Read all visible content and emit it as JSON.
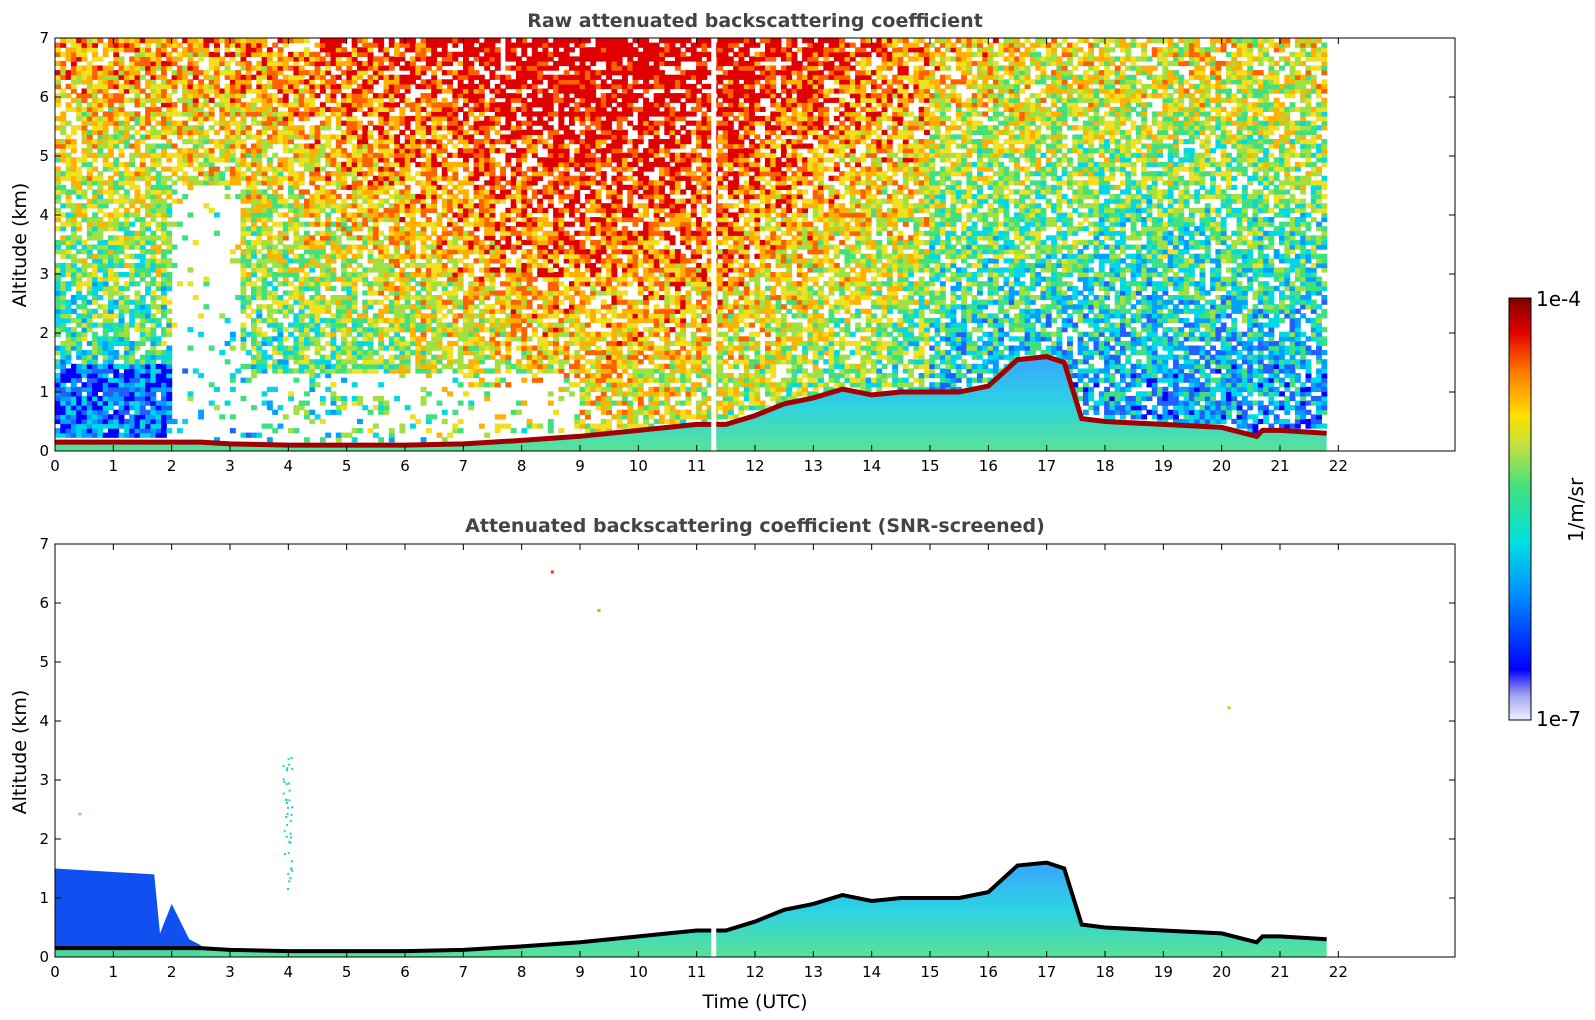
{
  "chart_data": [
    {
      "type": "heatmap",
      "title": "Raw attenuated backscattering coefficient",
      "xlabel": "",
      "ylabel": "Altitude (km)",
      "xlim": [
        0,
        24
      ],
      "ylim": [
        0,
        7
      ],
      "xticks": [
        "0",
        "1",
        "2",
        "3",
        "4",
        "5",
        "6",
        "7",
        "8",
        "9",
        "10",
        "11",
        "12",
        "13",
        "14",
        "15",
        "16",
        "17",
        "18",
        "19",
        "20",
        "21",
        "22"
      ],
      "yticks": [
        "0",
        "1",
        "2",
        "3",
        "4",
        "5",
        "6",
        "7"
      ],
      "data_extent_hours": [
        0,
        21.8
      ],
      "boundary_layer_top_km": {
        "time_utc": [
          0,
          2,
          2.5,
          3,
          4,
          5,
          6,
          7,
          8,
          9,
          10,
          11,
          11.5,
          12,
          12.5,
          13,
          13.5,
          14,
          14.5,
          15,
          15.5,
          16,
          16.5,
          17,
          17.3,
          17.6,
          18,
          19,
          20,
          20.6,
          20.7,
          21,
          21.8
        ],
        "altitude_km": [
          0.15,
          0.15,
          0.15,
          0.12,
          0.1,
          0.1,
          0.1,
          0.12,
          0.18,
          0.25,
          0.35,
          0.45,
          0.45,
          0.6,
          0.8,
          0.9,
          1.05,
          0.95,
          1.0,
          1.0,
          1.0,
          1.1,
          1.55,
          1.6,
          1.5,
          0.55,
          0.5,
          0.45,
          0.4,
          0.25,
          0.35,
          0.35,
          0.3
        ]
      },
      "grid": false,
      "legend": "none"
    },
    {
      "type": "heatmap",
      "title": "Attenuated backscattering coefficient (SNR-screened)",
      "xlabel": "Time (UTC)",
      "ylabel": "Altitude (km)",
      "xlim": [
        0,
        24
      ],
      "ylim": [
        0,
        7
      ],
      "xticks": [
        "0",
        "1",
        "2",
        "3",
        "4",
        "5",
        "6",
        "7",
        "8",
        "9",
        "10",
        "11",
        "12",
        "13",
        "14",
        "15",
        "16",
        "17",
        "18",
        "19",
        "20",
        "21",
        "22"
      ],
      "yticks": [
        "0",
        "1",
        "2",
        "3",
        "4",
        "5",
        "6",
        "7"
      ],
      "data_extent_hours": [
        0,
        21.8
      ],
      "residual_layer_top_km": {
        "time_utc": [
          0,
          1.7,
          1.8,
          2.0,
          2.3,
          2.5
        ],
        "altitude_km": [
          1.5,
          1.4,
          0.4,
          0.9,
          0.3,
          0.2
        ]
      },
      "grid": false,
      "legend": "none"
    }
  ],
  "colorbar": {
    "label": "1/m/sr",
    "max_label": "1e-4",
    "min_label": "1e-7",
    "scale": "log",
    "colormap": [
      "#ffffff",
      "#b8b8f0",
      "#0000ff",
      "#00a0ff",
      "#00e0e0",
      "#40e080",
      "#c0e040",
      "#ffe000",
      "#ff8000",
      "#e00000",
      "#800000"
    ]
  }
}
